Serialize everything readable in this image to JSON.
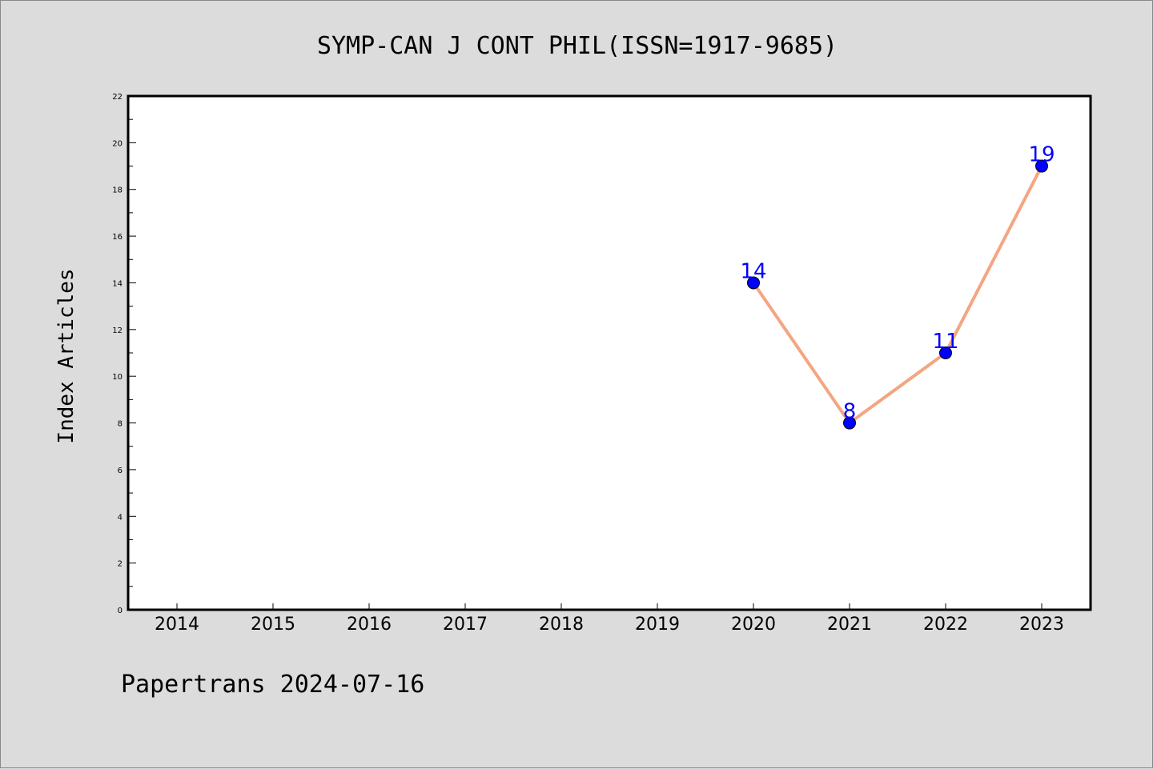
{
  "chart_data": {
    "type": "line",
    "title": "SYMP-CAN J CONT PHIL(ISSN=1917-9685)",
    "xlabel": "",
    "ylabel": "Index Articles",
    "categories": [
      "2014",
      "2015",
      "2016",
      "2017",
      "2018",
      "2019",
      "2020",
      "2021",
      "2022",
      "2023"
    ],
    "series": [
      {
        "values": [
          null,
          null,
          null,
          null,
          null,
          null,
          14,
          8,
          11,
          19
        ],
        "labels": [
          "",
          "",
          "",
          "",
          "",
          "",
          "14",
          "8",
          "11",
          "19"
        ]
      }
    ],
    "ylim": [
      0,
      22
    ],
    "y_ticks": [
      0,
      2,
      4,
      6,
      8,
      10,
      12,
      14,
      16,
      18,
      20,
      22
    ],
    "grid": false,
    "legend": "none",
    "colors": {
      "line": "#f4a582",
      "marker": "#0000ff",
      "data_label": "#0000ff",
      "background": "#dcdcdc",
      "plot_background": "#ffffff",
      "axis": "#000000"
    }
  },
  "footer": {
    "text": "Papertrans 2024-07-16"
  }
}
